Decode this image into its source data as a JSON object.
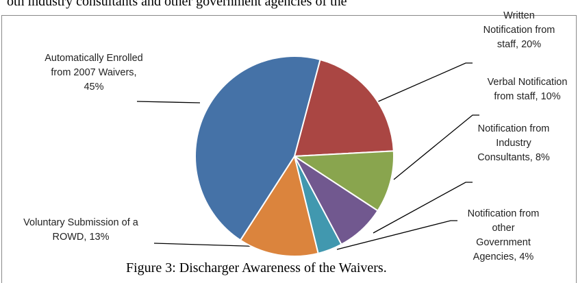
{
  "text_above": "oth industry consultants and other government agencies of the",
  "caption": "Figure 3: Discharger Awareness of the Waivers.",
  "chart_data": {
    "type": "pie",
    "categories": [
      "Written Notification from staff",
      "Verbal Notification from staff",
      "Notification from Industry Consultants",
      "Notification from other Government Agencies",
      "Voluntary Submission of a ROWD",
      "Automatically Enrolled from 2007 Waivers"
    ],
    "values": [
      20,
      10,
      8,
      4,
      13,
      45
    ],
    "value_labels": [
      "Written Notification from staff, 20%",
      "Verbal Notification from staff, 10%",
      "Notification from Industry Consultants, 8%",
      "Notification from other Government Agencies, 4%",
      "Voluntary Submission of a ROWD, 13%",
      "Automatically Enrolled from 2007 Waivers, 45%"
    ],
    "colors": [
      "#aa4643",
      "#89a54e",
      "#71588f",
      "#4198af",
      "#db843d",
      "#4572a7"
    ]
  }
}
